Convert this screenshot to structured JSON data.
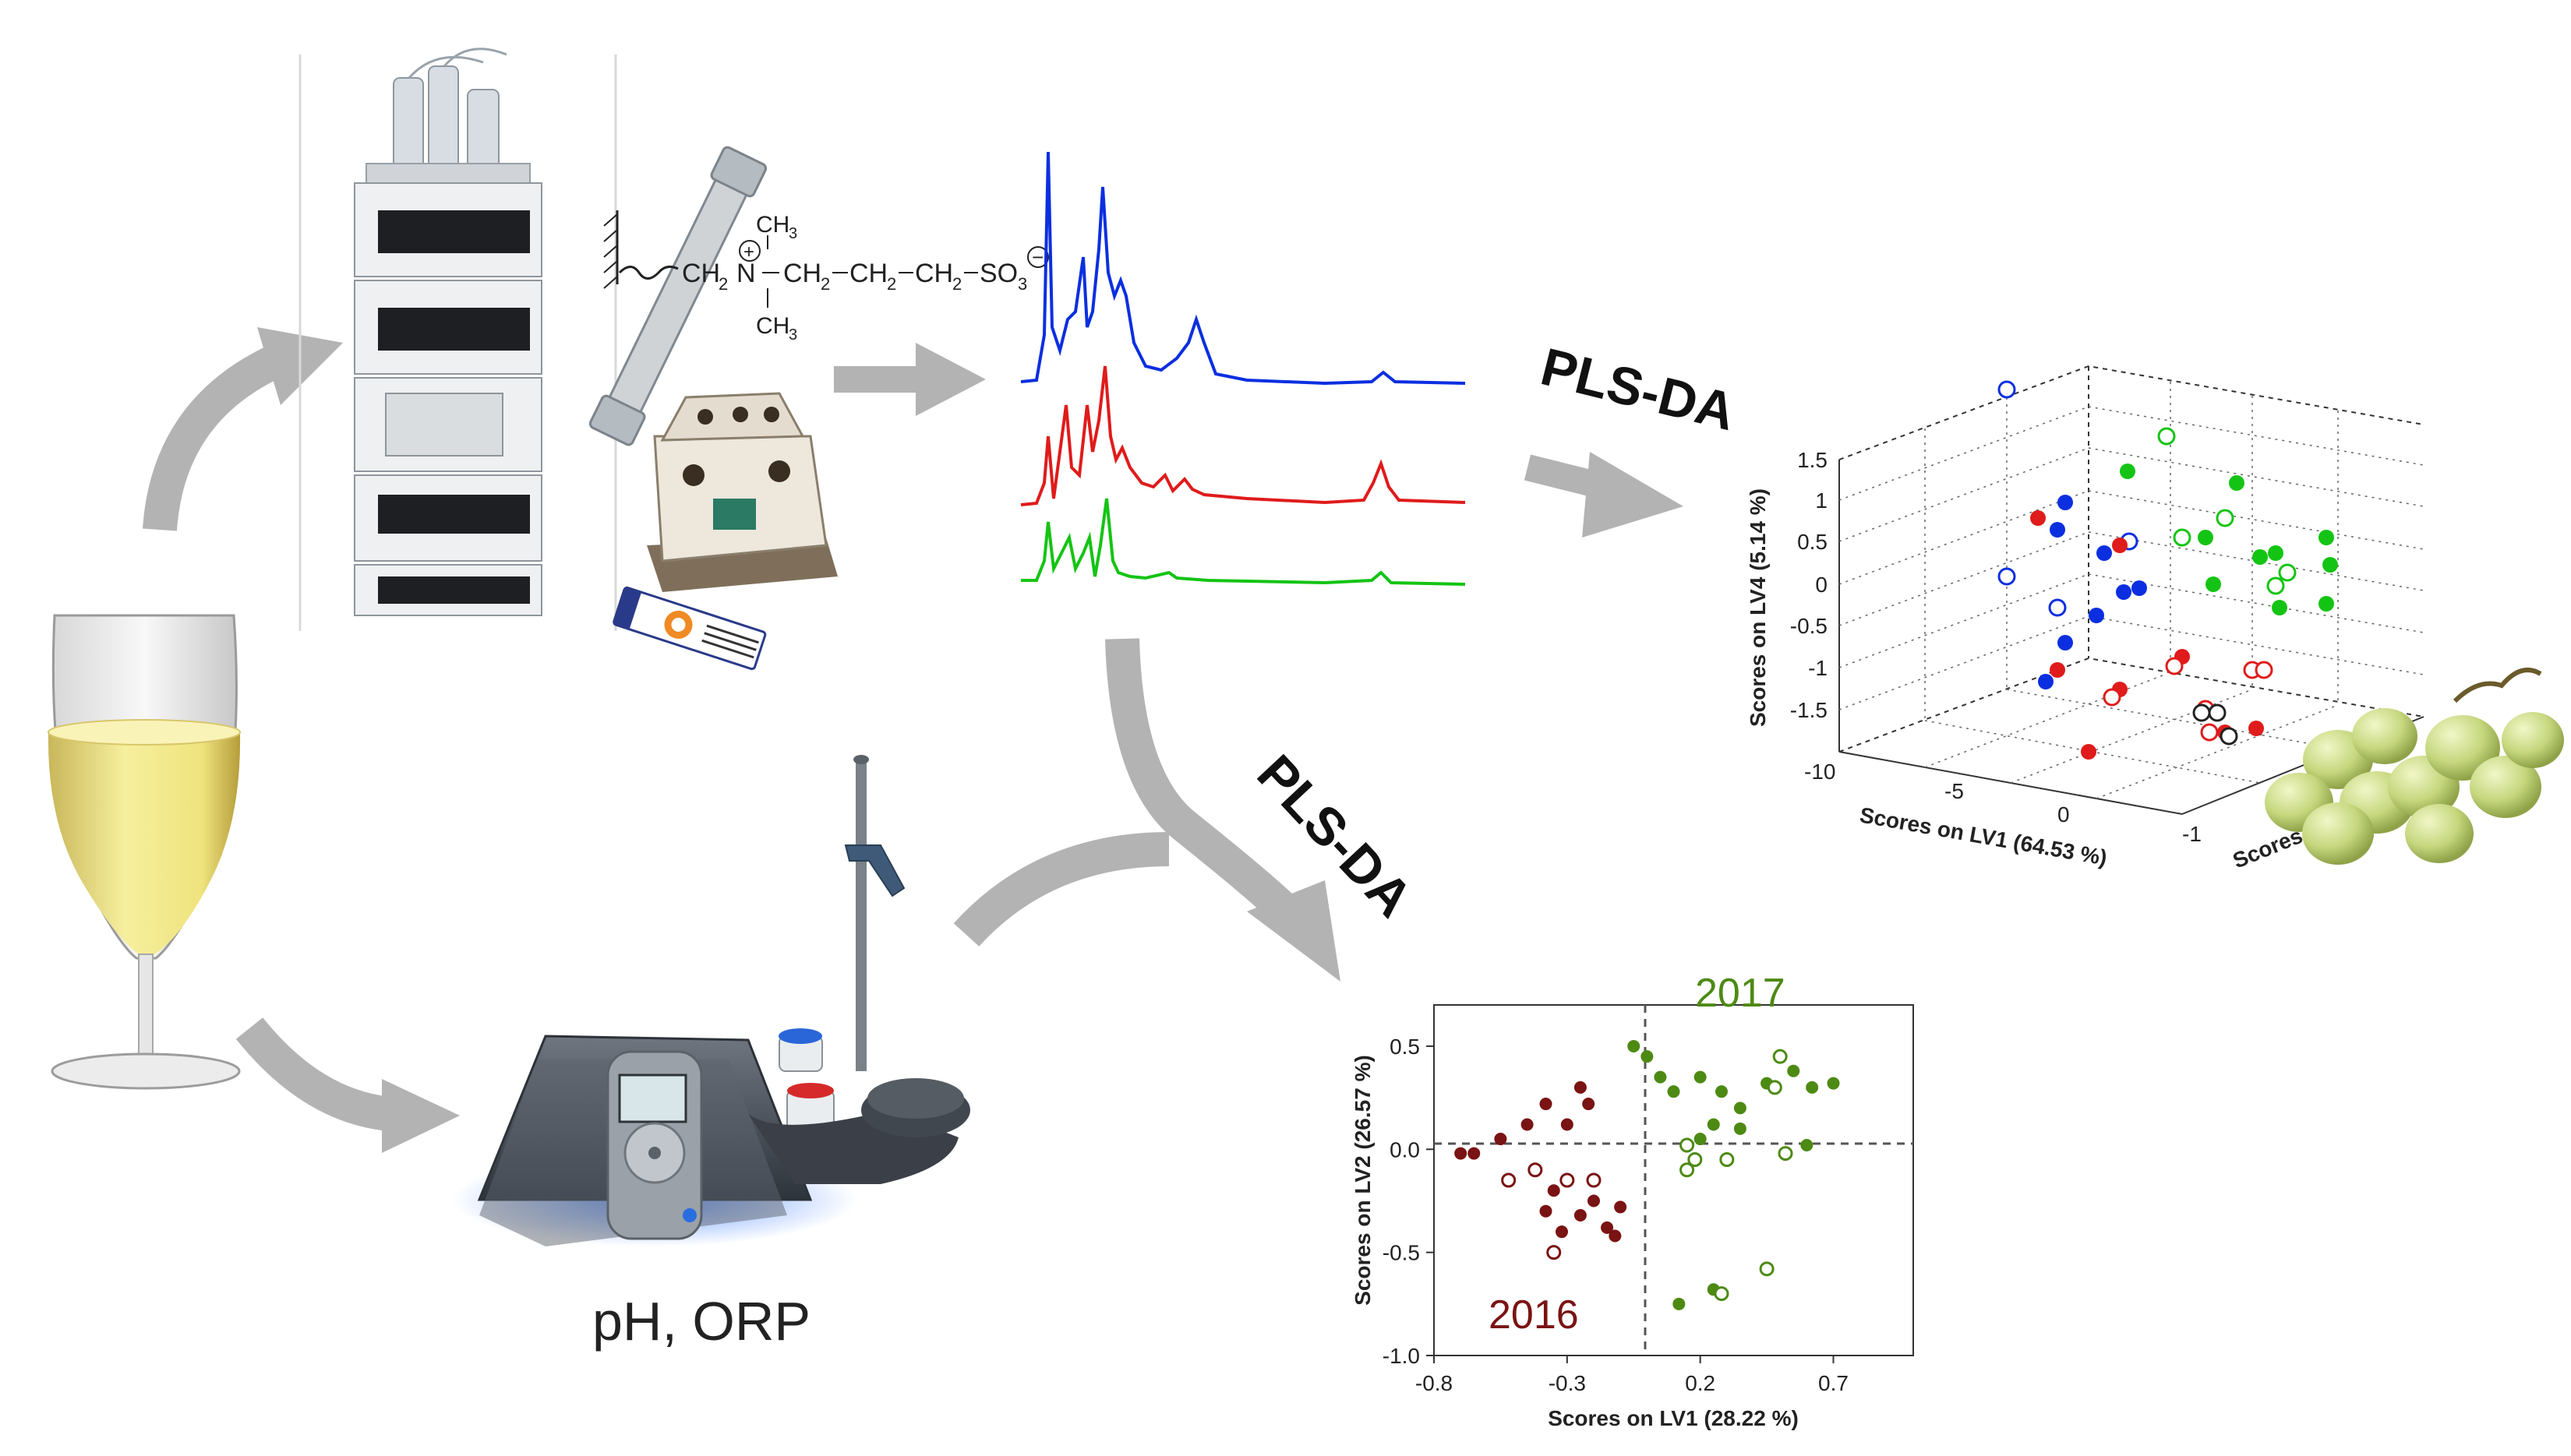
{
  "labels": {
    "plsda_top": "PLS-DA",
    "plsda_mid": "PLS-DA",
    "ph_orp": "pH, ORP",
    "formula": {
      "ch2_left": "CH",
      "sub2": "2",
      "n": "N",
      "plus": "+",
      "ch3_top": "CH",
      "sub3": "3",
      "ch3_bottom": "CH",
      "chain": "CH",
      "so3": "SO",
      "minus": "−"
    }
  },
  "colors": {
    "arrow": "#b3b3b3",
    "blue": "#0b2fe0",
    "red": "#e01b1b",
    "green": "#14c414",
    "dark_red": "#7a1313",
    "olive": "#4d8a14",
    "grape": "#c8d98a"
  },
  "chromatogram": {
    "series": [
      {
        "name": "blue-trace",
        "color": "#0b2fe0"
      },
      {
        "name": "red-trace",
        "color": "#e01b1b"
      },
      {
        "name": "green-trace",
        "color": "#14c414"
      }
    ]
  },
  "chart_data": [
    {
      "type": "scatter",
      "subtype": "3d",
      "xlabel": "Scores on LV1 (64.53 %)",
      "ylabel": "Scores on LV4 (5.14 %)",
      "zlabel": "Scores o...",
      "yticks": [
        "1.5",
        "1",
        "0.5",
        "0",
        "-0.5",
        "-1",
        "-1.5"
      ],
      "xticks": [
        "-10",
        "-5",
        "0"
      ],
      "zticks": [
        "-1"
      ],
      "series": [
        {
          "name": "blue",
          "color": "#0b2fe0",
          "filled_count": 8,
          "open_count": 4
        },
        {
          "name": "red",
          "color": "#e01b1b",
          "filled_count": 8,
          "open_count": 6
        },
        {
          "name": "green",
          "color": "#14c414",
          "filled_count": 10,
          "open_count": 5
        },
        {
          "name": "black",
          "color": "#222222",
          "filled_count": 0,
          "open_count": 3
        }
      ]
    },
    {
      "type": "scatter",
      "xlabel": "Scores on LV1 (28.22 %)",
      "ylabel": "Scores on LV2 (26.57 %)",
      "xlim": [
        -0.8,
        1.0
      ],
      "ylim": [
        -1.0,
        0.7
      ],
      "xticks": [
        "-0.8",
        "-0.3",
        "0.2",
        "0.7"
      ],
      "yticks": [
        "0.5",
        "0.0",
        "-0.5",
        "-1.0"
      ],
      "annotations": [
        "2017",
        "2016"
      ],
      "series": [
        {
          "name": "2016",
          "color": "#7a1313",
          "filled": [
            [
              -0.7,
              -0.02
            ],
            [
              -0.65,
              -0.02
            ],
            [
              -0.55,
              0.05
            ],
            [
              -0.38,
              0.22
            ],
            [
              -0.3,
              0.12
            ],
            [
              -0.25,
              0.3
            ],
            [
              -0.22,
              0.22
            ],
            [
              -0.45,
              0.12
            ],
            [
              -0.35,
              -0.2
            ],
            [
              -0.38,
              -0.3
            ],
            [
              -0.32,
              -0.4
            ],
            [
              -0.25,
              -0.32
            ],
            [
              -0.15,
              -0.38
            ],
            [
              -0.12,
              -0.42
            ],
            [
              -0.1,
              -0.28
            ],
            [
              -0.2,
              -0.25
            ]
          ],
          "open": [
            [
              -0.52,
              -0.15
            ],
            [
              -0.42,
              -0.1
            ],
            [
              -0.3,
              -0.15
            ],
            [
              -0.2,
              -0.15
            ],
            [
              -0.35,
              -0.5
            ]
          ]
        },
        {
          "name": "2017",
          "color": "#4d8a14",
          "filled": [
            [
              -0.05,
              0.5
            ],
            [
              0.0,
              0.45
            ],
            [
              0.05,
              0.35
            ],
            [
              0.1,
              0.28
            ],
            [
              0.2,
              0.35
            ],
            [
              0.28,
              0.28
            ],
            [
              0.35,
              0.2
            ],
            [
              0.45,
              0.32
            ],
            [
              0.55,
              0.38
            ],
            [
              0.62,
              0.3
            ],
            [
              0.7,
              0.32
            ],
            [
              0.2,
              0.05
            ],
            [
              0.25,
              0.12
            ],
            [
              0.35,
              0.1
            ],
            [
              0.6,
              0.02
            ],
            [
              0.12,
              -0.75
            ],
            [
              0.25,
              -0.68
            ]
          ],
          "open": [
            [
              0.15,
              -0.1
            ],
            [
              0.18,
              -0.05
            ],
            [
              0.3,
              -0.05
            ],
            [
              0.5,
              0.45
            ],
            [
              0.48,
              0.3
            ],
            [
              0.28,
              -0.7
            ],
            [
              0.45,
              -0.58
            ],
            [
              0.52,
              -0.02
            ],
            [
              0.15,
              0.02
            ]
          ]
        }
      ]
    }
  ]
}
